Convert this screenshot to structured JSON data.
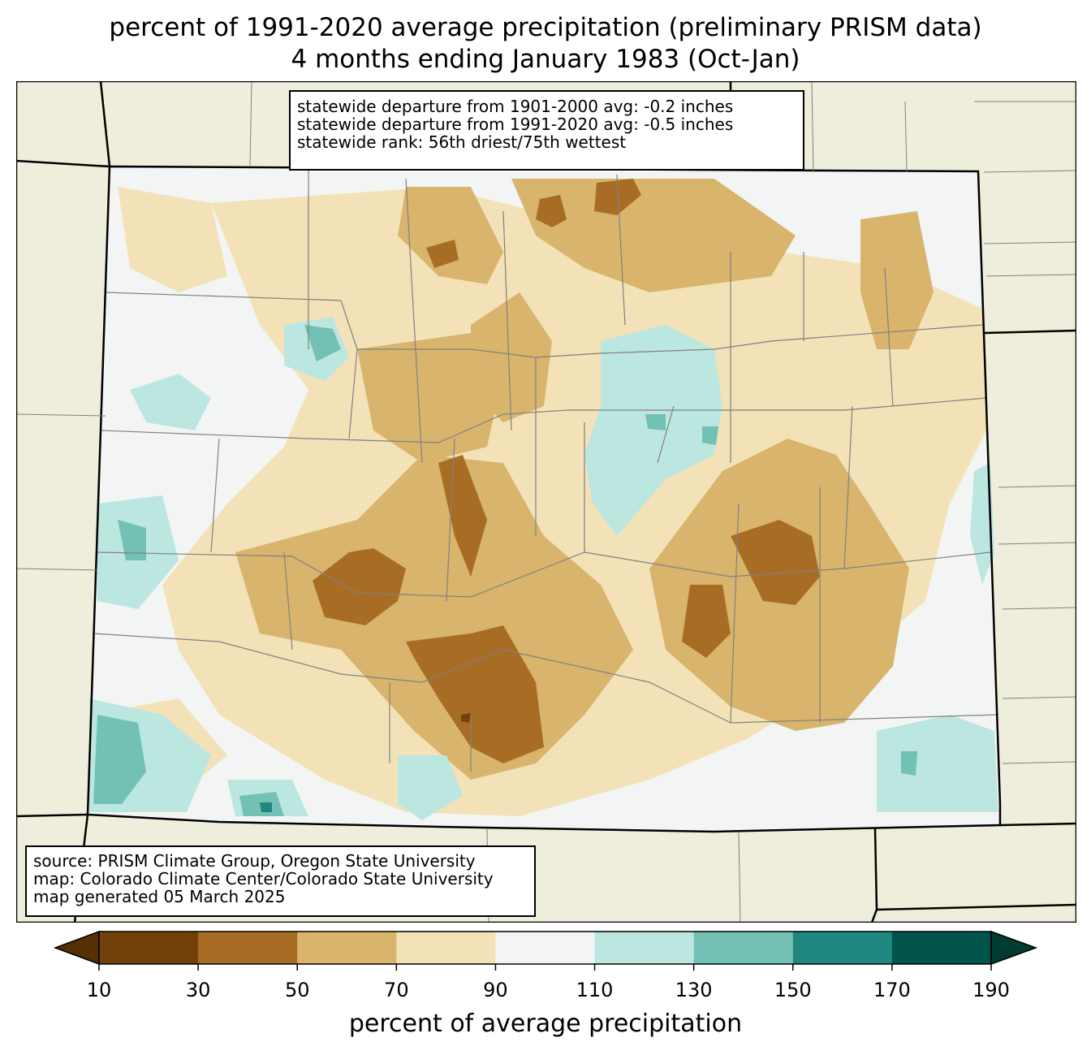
{
  "title_line1": "percent of 1991-2020 average precipitation (preliminary PRISM data)",
  "title_line2": "4 months ending January 1983 (Oct-Jan)",
  "stats": [
    "statewide departure from 1901-2000 avg: -0.2 inches",
    "statewide departure from 1991-2020 avg: -0.5 inches",
    "statewide rank: 56th driest/75th wettest"
  ],
  "source": [
    "source: PRISM Climate Group, Oregon State University",
    "map: Colorado Climate Center/Colorado State University",
    "map generated 05 March 2025"
  ],
  "colorbar": {
    "label": "percent of average precipitation",
    "ticks": [
      "10",
      "30",
      "50",
      "70",
      "90",
      "110",
      "130",
      "150",
      "170",
      "190"
    ],
    "under_color": "#543005",
    "over_color": "#003c30",
    "colors": [
      "#8c510a",
      "#bf812d",
      "#dfc27d",
      "#f6e8c3",
      "#f5f5f5",
      "#c7eae5",
      "#80cdc1",
      "#35978f",
      "#01665e"
    ],
    "display_colors": [
      "#724009",
      "#a86d25",
      "#d8b46d",
      "#f3e2b7",
      "#f3f5f4",
      "#bce6e0",
      "#72c1b4",
      "#208780",
      "#00544b"
    ]
  },
  "colors": {
    "background_land": "#efeddb",
    "state_border": "#000000",
    "county_border": "#808080"
  }
}
